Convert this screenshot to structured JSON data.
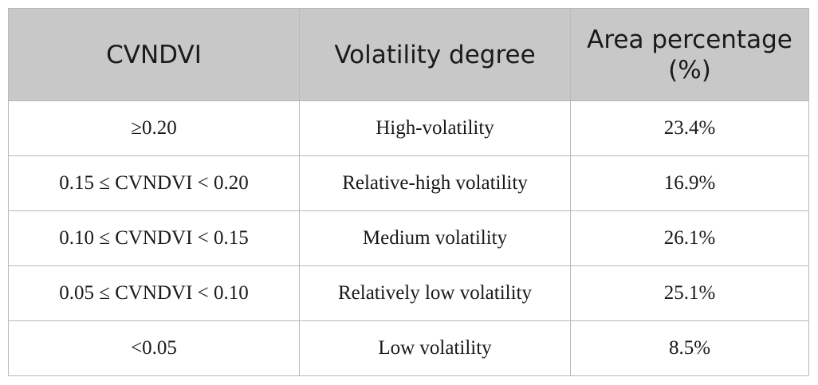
{
  "table": {
    "headers": [
      "CVNDVI",
      "Volatility degree",
      "Area percentage (%)"
    ],
    "rows": [
      [
        "≥0.20",
        "High-volatility",
        "23.4%"
      ],
      [
        "0.15 ≤ CVNDVI < 0.20",
        "Relative-high volatility",
        "16.9%"
      ],
      [
        "0.10 ≤ CVNDVI < 0.15",
        "Medium volatility",
        "26.1%"
      ],
      [
        "0.05 ≤ CVNDVI < 0.10",
        "Relatively low volatility",
        "25.1%"
      ],
      [
        "<0.05",
        "Low volatility",
        "8.5%"
      ]
    ]
  }
}
